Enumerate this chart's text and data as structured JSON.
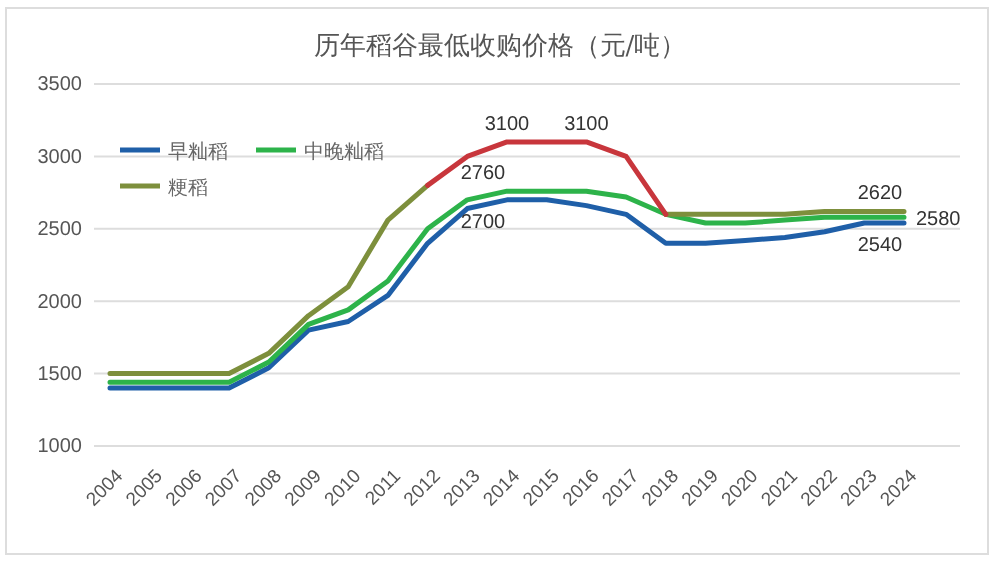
{
  "chart_data": {
    "type": "line",
    "title": "历年稻谷最低收购价格（元/吨）",
    "categories": [
      "2004",
      "2005",
      "2006",
      "2007",
      "2008",
      "2009",
      "2010",
      "2011",
      "2012",
      "2013",
      "2014",
      "2015",
      "2016",
      "2017",
      "2018",
      "2019",
      "2020",
      "2021",
      "2022",
      "2023",
      "2024"
    ],
    "series": [
      {
        "name": "早籼稻",
        "color": "#1f5fa8",
        "values": [
          1400,
          1400,
          1400,
          1400,
          1540,
          1800,
          1860,
          2040,
          2400,
          2640,
          2700,
          2700,
          2660,
          2600,
          2400,
          2400,
          2420,
          2440,
          2480,
          2540,
          2540
        ]
      },
      {
        "name": "中晚籼稻",
        "color": "#2db34a",
        "values": [
          1440,
          1440,
          1440,
          1440,
          1580,
          1840,
          1940,
          2140,
          2500,
          2700,
          2760,
          2760,
          2760,
          2720,
          2600,
          2540,
          2540,
          2560,
          2580,
          2580,
          2580
        ]
      },
      {
        "name": "粳稻",
        "color": "#7d8f3c",
        "values": [
          1500,
          1500,
          1500,
          1500,
          1640,
          1900,
          2100,
          2560,
          2800,
          null,
          null,
          null,
          null,
          null,
          2600,
          2600,
          2600,
          2600,
          2620,
          2620,
          2620
        ]
      },
      {
        "color": "#c8363c",
        "values": [
          null,
          null,
          null,
          null,
          null,
          null,
          null,
          null,
          2800,
          3000,
          3100,
          3100,
          3100,
          3000,
          2600,
          null,
          null,
          null,
          null,
          null,
          null
        ]
      }
    ],
    "ylim": [
      1000,
      3500
    ],
    "yticks": [
      1000,
      1500,
      2000,
      2500,
      3000,
      3500
    ],
    "grid": "y",
    "legend": "top left",
    "annotations": [
      {
        "text": "3100",
        "x": "2014",
        "y": 3100
      },
      {
        "text": "3100",
        "x": "2016",
        "y": 3100
      },
      {
        "text": "2760",
        "x": "2014",
        "y": 2760
      },
      {
        "text": "2700",
        "x": "2014",
        "y": 2700
      },
      {
        "text": "2620",
        "x": "2024",
        "y": 2620
      },
      {
        "text": "2580",
        "x": "2024",
        "y": 2580
      },
      {
        "text": "2540",
        "x": "2024",
        "y": 2540
      }
    ]
  }
}
